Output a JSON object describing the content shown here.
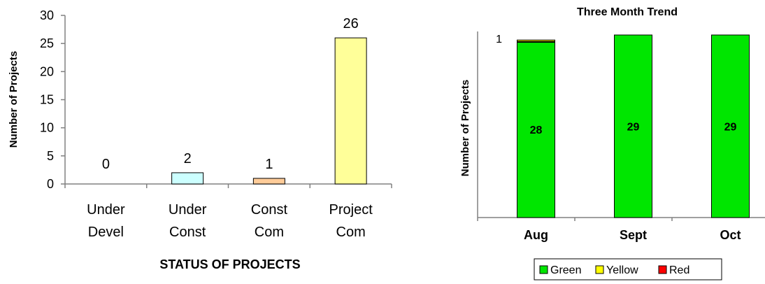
{
  "chart_data": [
    {
      "type": "bar",
      "title": "",
      "categories": [
        [
          "Under",
          "Devel"
        ],
        [
          "Under",
          "Const"
        ],
        [
          "Const",
          "Com"
        ],
        [
          "Project",
          "Com"
        ]
      ],
      "values": [
        0,
        2,
        1,
        26
      ],
      "data_labels": [
        "0",
        "2",
        "1",
        "26"
      ],
      "bar_colors": [
        "#ccffff",
        "#ccffff",
        "#ffcc99",
        "#ffff99"
      ],
      "xlabel": "STATUS OF PROJECTS",
      "ylabel": "Number of Projects",
      "ylim": [
        0,
        30
      ],
      "yticks": [
        "0",
        "5",
        "10",
        "15",
        "20",
        "25",
        "30"
      ],
      "grid": false,
      "legend": "none"
    },
    {
      "type": "bar",
      "stacked": true,
      "title": "Three Month Trend",
      "categories": [
        "Aug",
        "Sept",
        "Oct"
      ],
      "series": [
        {
          "name": "Green",
          "color": "#00e600",
          "values": [
            28,
            29,
            29
          ],
          "labels": [
            "28",
            "29",
            "29"
          ]
        },
        {
          "name": "Yellow",
          "color": "#ffff00",
          "values": [
            0.15,
            0,
            0
          ]
        },
        {
          "name": "Red",
          "color": "#ff0000",
          "values": [
            0.05,
            0,
            0
          ]
        }
      ],
      "yticks": [
        "1"
      ],
      "ylabel": "Number of Projects",
      "xlabel": "",
      "grid": false,
      "legend": "bottom"
    }
  ]
}
